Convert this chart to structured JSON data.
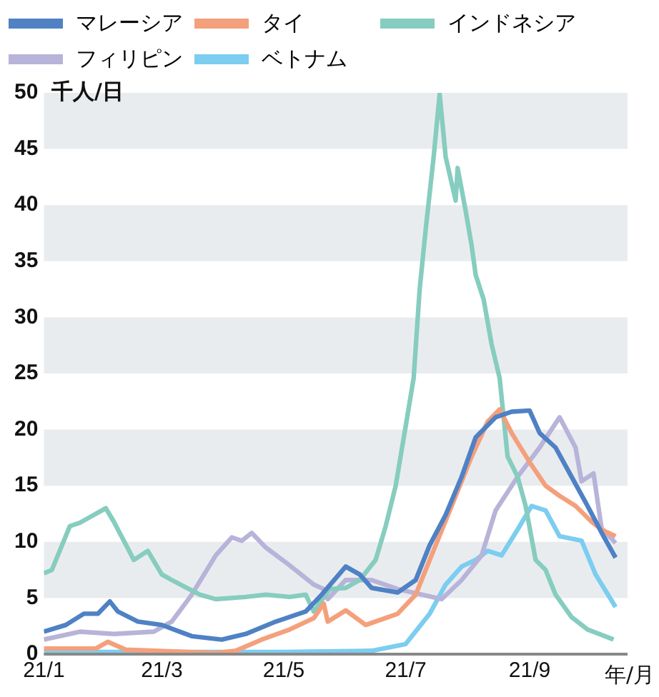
{
  "chart_data": {
    "type": "line",
    "ylabel": "千人/日",
    "xlabel": "年/月",
    "xlim": [
      "--01-01",
      "--10-20"
    ],
    "xticks": [
      {
        "value": "--01-01",
        "label": "21/1"
      },
      {
        "value": "--03-01",
        "label": "21/3"
      },
      {
        "value": "--05-01",
        "label": "21/5"
      },
      {
        "value": "--07-01",
        "label": "21/7"
      },
      {
        "value": "--09-01",
        "label": "21/9"
      }
    ],
    "ylim": [
      0,
      50
    ],
    "yticks": [
      0,
      5,
      10,
      15,
      20,
      25,
      30,
      35,
      40,
      45,
      50
    ],
    "legend": "top left",
    "marker": "none",
    "line_style": "solid",
    "bands": [
      {
        "axis": "y",
        "from": 5,
        "to": 10,
        "color": "#e9ecef"
      },
      {
        "axis": "y",
        "from": 15,
        "to": 20,
        "color": "#e9ecef"
      },
      {
        "axis": "y",
        "from": 25,
        "to": 30,
        "color": "#e9ecef"
      },
      {
        "axis": "y",
        "from": 35,
        "to": 40,
        "color": "#e9ecef"
      },
      {
        "axis": "y",
        "from": 45,
        "to": 50,
        "color": "#e9ecef"
      }
    ],
    "series": [
      {
        "name": "マレーシア",
        "color": "#4f81c4",
        "x": [
          "--01-01",
          "--01-12",
          "--01-21",
          "--01-28",
          "--02-03",
          "--02-07",
          "--02-17",
          "--03-01",
          "--03-16",
          "--03-31",
          "--04-12",
          "--04-27",
          "--05-12",
          "--05-20",
          "--06-01",
          "--06-08",
          "--06-14",
          "--06-27",
          "--07-06",
          "--07-13",
          "--07-21",
          "--07-29",
          "--08-05",
          "--08-15",
          "--08-23",
          "--09-01",
          "--09-06",
          "--09-14",
          "--09-22",
          "--09-30",
          "--10-08",
          "--10-14"
        ],
        "values": [
          2.0,
          2.6,
          3.6,
          3.6,
          4.7,
          3.8,
          2.9,
          2.6,
          1.6,
          1.3,
          1.8,
          2.9,
          3.8,
          5.3,
          7.8,
          7.1,
          5.9,
          5.5,
          6.6,
          9.7,
          12.4,
          15.8,
          19.3,
          21.1,
          21.6,
          21.7,
          19.7,
          18.4,
          15.8,
          13.2,
          10.5,
          8.6
        ]
      },
      {
        "name": "タイ",
        "color": "#f4a07c",
        "x": [
          "--01-01",
          "--01-27",
          "--02-02",
          "--02-11",
          "--03-28",
          "--04-07",
          "--04-20",
          "--05-04",
          "--05-16",
          "--05-21",
          "--05-23",
          "--06-01",
          "--06-11",
          "--06-27",
          "--07-06",
          "--07-16",
          "--07-24",
          "--08-03",
          "--08-11",
          "--08-17",
          "--08-23",
          "--09-01",
          "--09-09",
          "--09-16",
          "--09-24",
          "--10-02",
          "--10-07",
          "--10-14"
        ],
        "values": [
          0.5,
          0.5,
          1.1,
          0.4,
          0.1,
          0.3,
          1.3,
          2.2,
          3.2,
          4.5,
          2.9,
          3.9,
          2.6,
          3.6,
          5.3,
          9.7,
          13.2,
          17.6,
          20.7,
          21.8,
          19.7,
          17.1,
          15.0,
          14.1,
          13.2,
          11.8,
          11.1,
          10.5
        ]
      },
      {
        "name": "インドネシア",
        "color": "#86cdbf",
        "x": [
          "--01-01",
          "--01-05",
          "--01-14",
          "--01-19",
          "--01-23",
          "--02-01",
          "--02-05",
          "--02-15",
          "--02-22",
          "--03-01",
          "--03-06",
          "--03-20",
          "--03-28",
          "--04-12",
          "--04-22",
          "--05-04",
          "--05-12",
          "--05-16",
          "--05-24",
          "--06-01",
          "--06-08",
          "--06-16",
          "--06-21",
          "--06-26",
          "--07-01",
          "--07-05",
          "--07-08",
          "--07-11",
          "--07-15",
          "--07-18",
          "--07-21",
          "--07-26",
          "--07-27",
          "--07-31",
          "--08-03",
          "--08-05",
          "--08-09",
          "--08-13",
          "--08-17",
          "--08-21",
          "--08-26",
          "--08-30",
          "--09-04",
          "--09-09",
          "--09-14",
          "--09-22",
          "--09-30",
          "--10-13"
        ],
        "values": [
          7.2,
          7.5,
          11.4,
          11.7,
          12.1,
          13.0,
          11.8,
          8.4,
          9.2,
          7.1,
          6.6,
          5.3,
          4.9,
          5.1,
          5.3,
          5.1,
          5.3,
          3.8,
          5.8,
          5.9,
          6.6,
          8.4,
          11.4,
          15.0,
          20.3,
          24.6,
          32.5,
          37.8,
          44.3,
          49.9,
          44.3,
          40.4,
          43.3,
          39.5,
          36.4,
          33.8,
          31.6,
          27.6,
          24.6,
          17.6,
          15.8,
          13.2,
          8.4,
          7.5,
          5.3,
          3.3,
          2.2,
          1.3
        ]
      },
      {
        "name": "フィリピン",
        "color": "#b8b3d9",
        "x": [
          "--01-01",
          "--01-19",
          "--02-05",
          "--02-25",
          "--03-06",
          "--03-16",
          "--03-28",
          "--04-05",
          "--04-10",
          "--04-15",
          "--04-22",
          "--05-04",
          "--05-16",
          "--05-21",
          "--05-23",
          "--06-01",
          "--06-14",
          "--06-27",
          "--07-09",
          "--07-19",
          "--07-29",
          "--08-08",
          "--08-15",
          "--08-26",
          "--09-06",
          "--09-16",
          "--09-24",
          "--09-27",
          "--10-03",
          "--10-07",
          "--10-14"
        ],
        "values": [
          1.3,
          2.0,
          1.8,
          2.0,
          2.9,
          5.3,
          8.8,
          10.4,
          10.1,
          10.8,
          9.5,
          7.9,
          6.2,
          5.8,
          4.9,
          6.6,
          6.6,
          5.8,
          5.3,
          4.9,
          6.6,
          8.8,
          12.8,
          15.8,
          18.4,
          21.1,
          18.4,
          15.4,
          16.1,
          11.2,
          9.9
        ]
      },
      {
        "name": "ベトナム",
        "color": "#7ccdf0",
        "x": [
          "--01-01",
          "--05-01",
          "--06-14",
          "--07-01",
          "--07-13",
          "--07-21",
          "--07-29",
          "--08-05",
          "--08-11",
          "--08-18",
          "--08-26",
          "--09-02",
          "--09-09",
          "--09-16",
          "--09-27",
          "--10-04",
          "--10-14"
        ],
        "values": [
          0.2,
          0.2,
          0.3,
          0.9,
          3.6,
          6.2,
          7.8,
          8.4,
          9.2,
          8.8,
          11.1,
          13.2,
          12.8,
          10.5,
          10.1,
          7.1,
          4.2
        ]
      }
    ]
  }
}
